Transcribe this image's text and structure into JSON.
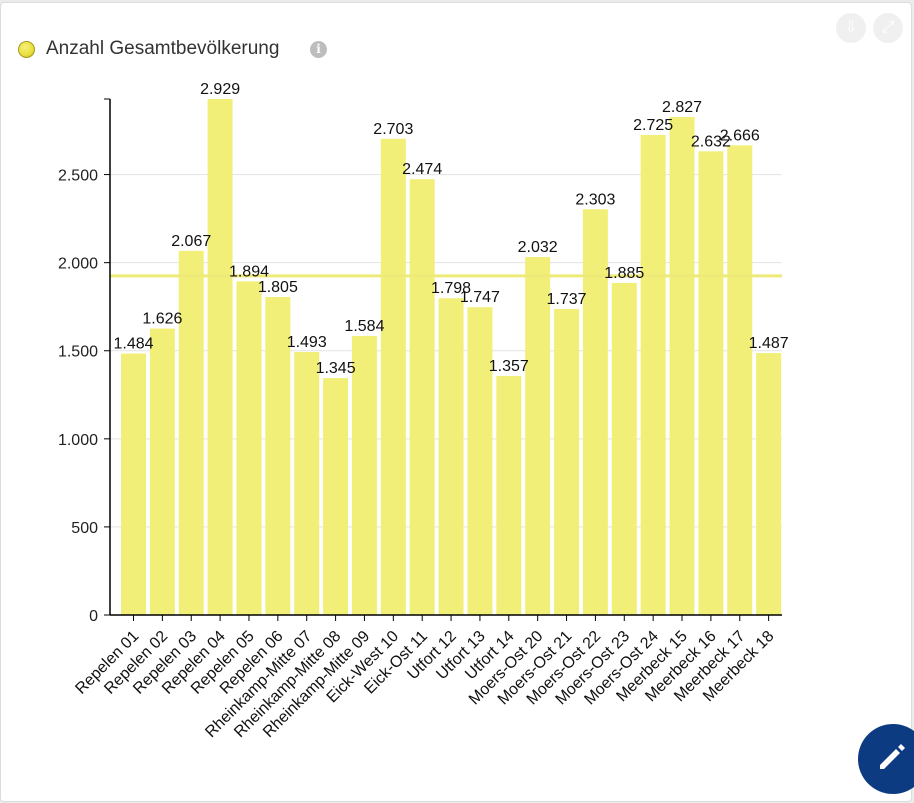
{
  "widget": {
    "title": "Anzahl Gesamtbevölkerung",
    "info_icon": "info-icon",
    "download_icon": "download-icon",
    "expand_icon": "expand-icon",
    "edit_icon": "pencil-icon",
    "series_color": "#f2ef79",
    "reference_line_color": "#eeea78"
  },
  "chart_data": {
    "type": "bar",
    "title": "Anzahl Gesamtbevölkerung",
    "xlabel": "",
    "ylabel": "",
    "ylim": [
      0,
      2929
    ],
    "yticks": [
      0,
      500,
      1000,
      1500,
      2000,
      2500
    ],
    "ytick_labels": [
      "0",
      "500",
      "1.000",
      "1.500",
      "2.000",
      "2.500"
    ],
    "grid": true,
    "reference_line": 1925,
    "categories": [
      "Repelen 01",
      "Repelen 02",
      "Repelen 03",
      "Repelen 04",
      "Repelen 05",
      "Repelen 06",
      "Rheinkamp-Mitte 07",
      "Rheinkamp-Mitte 08",
      "Rheinkamp-Mitte 09",
      "Eick-West 10",
      "Eick-Ost 11",
      "Utfort 12",
      "Utfort 13",
      "Utfort 14",
      "Moers-Ost 20",
      "Moers-Ost 21",
      "Moers-Ost 22",
      "Moers-Ost 23",
      "Moers-Ost 24",
      "Meerbeck 15",
      "Meerbeck 16",
      "Meerbeck 17",
      "Meerbeck 18"
    ],
    "values": [
      1484,
      1626,
      2067,
      2929,
      1894,
      1805,
      1493,
      1345,
      1584,
      2703,
      2474,
      1798,
      1747,
      1357,
      2032,
      1737,
      2303,
      1885,
      2725,
      2827,
      2632,
      2666,
      1487
    ],
    "value_labels": [
      "1.484",
      "1.626",
      "2.067",
      "2.929",
      "1.894",
      "1.805",
      "1.493",
      "1.345",
      "1.584",
      "2.703",
      "2.474",
      "1.798",
      "1.747",
      "1.357",
      "2.032",
      "1.737",
      "2.303",
      "1.885",
      "2.725",
      "2.827",
      "2.632",
      "2.666",
      "1.487"
    ]
  }
}
